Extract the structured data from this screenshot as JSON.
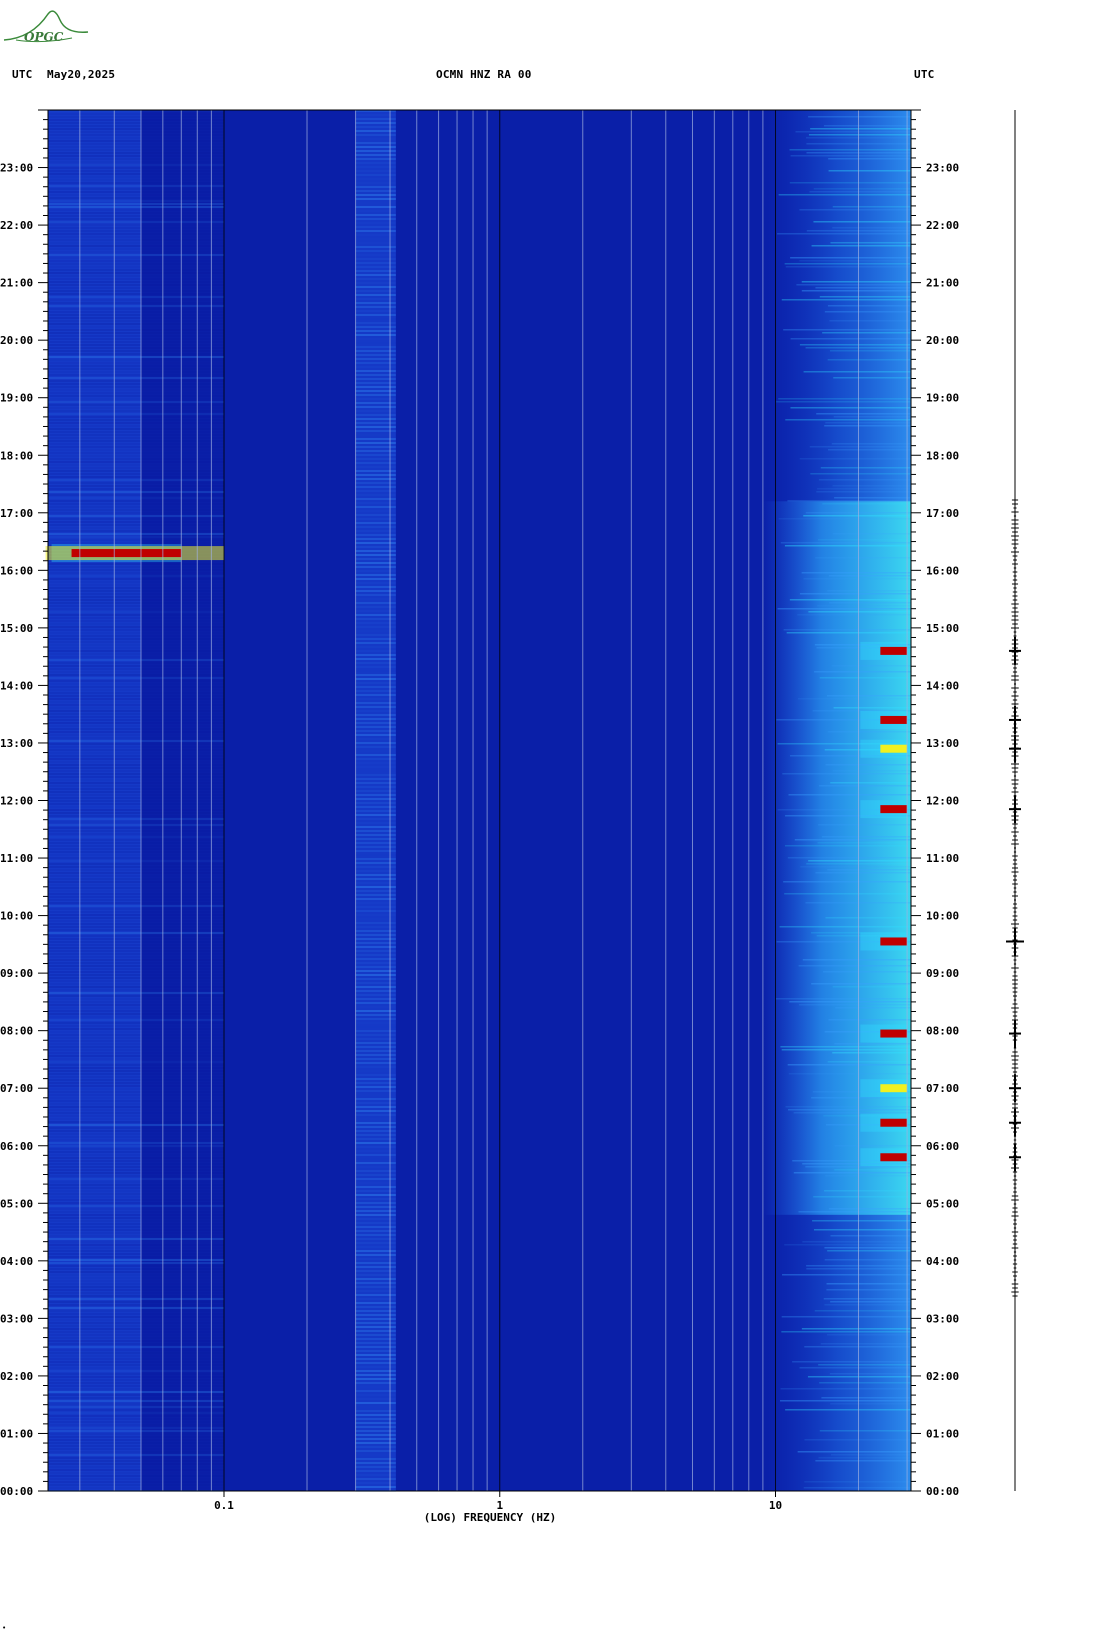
{
  "header": {
    "left_tz": "UTC",
    "date": "May20,2025",
    "station": "OCMN HNZ RA 00",
    "right_tz": "UTC"
  },
  "logo": {
    "text": "OPGC",
    "icon": "observatory-logo-icon"
  },
  "colors": {
    "background_blue": "#0a1fa8",
    "deep_blue": "#0717a0",
    "mid_blue": "#1f4fe0",
    "light_blue": "#3aa0ff",
    "cyan": "#30e0ff",
    "yellow": "#f0f020",
    "red": "#c00000",
    "gridline": "#a0b0e0"
  },
  "chart_data": {
    "type": "heatmap",
    "title": "OCMN HNZ RA 00",
    "xlabel": "(LOG) FREQUENCY (HZ)",
    "ylabel": "UTC",
    "x_scale": "log",
    "xlim": [
      0.023,
      31
    ],
    "ylim_hours": [
      0,
      24
    ],
    "x_tick_labels": [
      "0.1",
      "1",
      "10"
    ],
    "x_tick_values": [
      0.1,
      1,
      10
    ],
    "y_tick_labels": [
      "00:00",
      "01:00",
      "02:00",
      "03:00",
      "04:00",
      "05:00",
      "06:00",
      "07:00",
      "08:00",
      "09:00",
      "10:00",
      "11:00",
      "12:00",
      "13:00",
      "14:00",
      "15:00",
      "16:00",
      "17:00",
      "18:00",
      "19:00",
      "20:00",
      "21:00",
      "22:00",
      "23:00"
    ],
    "y_tick_hours": [
      0,
      1,
      2,
      3,
      4,
      5,
      6,
      7,
      8,
      9,
      10,
      11,
      12,
      13,
      14,
      15,
      16,
      17,
      18,
      19,
      20,
      21,
      22,
      23
    ],
    "high_energy_events": [
      {
        "hour": 16.3,
        "freq_min": 0.028,
        "freq_max": 0.07,
        "level": "red"
      },
      {
        "hour": 14.6,
        "freq_min": 24,
        "freq_max": 30,
        "level": "red"
      },
      {
        "hour": 13.4,
        "freq_min": 24,
        "freq_max": 30,
        "level": "red"
      },
      {
        "hour": 12.9,
        "freq_min": 24,
        "freq_max": 30,
        "level": "yellow"
      },
      {
        "hour": 11.85,
        "freq_min": 24,
        "freq_max": 30,
        "level": "red"
      },
      {
        "hour": 9.55,
        "freq_min": 24,
        "freq_max": 30,
        "level": "red"
      },
      {
        "hour": 7.95,
        "freq_min": 24,
        "freq_max": 30,
        "level": "red"
      },
      {
        "hour": 7.0,
        "freq_min": 24,
        "freq_max": 30,
        "level": "yellow"
      },
      {
        "hour": 6.4,
        "freq_min": 24,
        "freq_max": 30,
        "level": "red"
      },
      {
        "hour": 5.8,
        "freq_min": 24,
        "freq_max": 30,
        "level": "red"
      }
    ],
    "background_bands": [
      {
        "freq_min": 0.023,
        "freq_max": 0.05,
        "level": "mid_blue"
      },
      {
        "freq_min": 0.3,
        "freq_max": 0.42,
        "level": "mid_blue"
      },
      {
        "freq_min": 9,
        "freq_max": 31,
        "level": "light_blue"
      }
    ]
  },
  "trace": {
    "label": "seismogram-trace"
  }
}
